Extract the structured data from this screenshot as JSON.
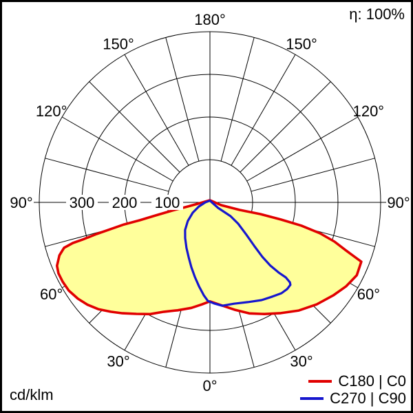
{
  "header": {
    "efficiency": "η: 100%"
  },
  "footer": {
    "units": "cd/klm"
  },
  "chart_data": {
    "type": "line",
    "subtype": "polar-photometric-luminous-intensity",
    "units": "cd/klm",
    "efficiency": "η: 100%",
    "rlim": [
      0,
      400
    ],
    "radial_ticks": [
      100,
      200,
      300,
      400
    ],
    "radial_tick_labels": [
      "100",
      "200",
      "300"
    ],
    "angle_step_deg": 15,
    "angle_tick_labels": [
      "0°",
      "30°",
      "60°",
      "90°",
      "120°",
      "150°",
      "180°"
    ],
    "angle_tick_values": [
      0,
      30,
      60,
      90,
      120,
      150,
      180
    ],
    "grid_color": "#000000",
    "legend_position": "bottom-right",
    "series": [
      {
        "name": "C180 | C0",
        "color": "#e10000",
        "fill": "#ffff9b",
        "points_gamma_value": [
          [
            180,
            5
          ],
          [
            76.0,
            27
          ],
          [
            75.7,
            72
          ],
          [
            76.9,
            121
          ],
          [
            76.4,
            171
          ],
          [
            75.7,
            221
          ],
          [
            74.3,
            268
          ],
          [
            72.5,
            306
          ],
          [
            70.5,
            339
          ],
          [
            68.6,
            381
          ],
          [
            63.6,
            384
          ],
          [
            58.4,
            375
          ],
          [
            53.0,
            362
          ],
          [
            46.3,
            346
          ],
          [
            39.4,
            328
          ],
          [
            32.6,
            308
          ],
          [
            26.0,
            291
          ],
          [
            19.5,
            276
          ],
          [
            13.3,
            259
          ],
          [
            6.5,
            243
          ],
          [
            0,
            232
          ],
          [
            -4.6,
            240
          ],
          [
            -10.0,
            251
          ],
          [
            -16.7,
            264
          ],
          [
            -22.8,
            278
          ],
          [
            -28.2,
            297
          ],
          [
            -33.4,
            313
          ],
          [
            -38.3,
            331
          ],
          [
            -42.2,
            346
          ],
          [
            -46.3,
            362
          ],
          [
            -50.1,
            374
          ],
          [
            -53.9,
            383
          ],
          [
            -58.0,
            390
          ],
          [
            -61.7,
            392
          ],
          [
            -64.9,
            392
          ],
          [
            -67.5,
            388
          ],
          [
            -70.6,
            374
          ],
          [
            -72.7,
            358
          ],
          [
            -73.5,
            335
          ],
          [
            -73.7,
            311
          ],
          [
            -74.4,
            276
          ],
          [
            -74.9,
            242
          ],
          [
            -75.6,
            208
          ],
          [
            -75.7,
            170
          ],
          [
            -76.5,
            131
          ],
          [
            -77.7,
            91
          ],
          [
            -79.4,
            52
          ],
          [
            -85.9,
            23
          ],
          [
            -180,
            5
          ]
        ]
      },
      {
        "name": "C270 | C90",
        "color": "#1616ce",
        "fill": null,
        "points_gamma_value": [
          [
            180,
            4
          ],
          [
            56.0,
            23
          ],
          [
            56.3,
            58
          ],
          [
            52.9,
            83
          ],
          [
            48.4,
            114
          ],
          [
            45.4,
            147
          ],
          [
            43.9,
            177
          ],
          [
            43.7,
            205
          ],
          [
            44.4,
            230
          ],
          [
            45.3,
            250
          ],
          [
            45.0,
            265
          ],
          [
            44.3,
            270
          ],
          [
            41.6,
            272
          ],
          [
            38.2,
            271
          ],
          [
            33.6,
            265
          ],
          [
            27.8,
            259
          ],
          [
            20.8,
            250
          ],
          [
            13.4,
            244
          ],
          [
            6.8,
            244
          ],
          [
            2.3,
            237
          ],
          [
            -1.2,
            231
          ],
          [
            -3.8,
            218
          ],
          [
            -7.5,
            198
          ],
          [
            -11.5,
            178
          ],
          [
            -16.0,
            158
          ],
          [
            -21.2,
            138
          ],
          [
            -27.3,
            120
          ],
          [
            -34.7,
            102
          ],
          [
            -42.0,
            87
          ],
          [
            -49.8,
            68
          ],
          [
            -59.0,
            47
          ],
          [
            -69.4,
            28
          ],
          [
            -90.0,
            11
          ],
          [
            -180,
            4
          ]
        ]
      }
    ]
  }
}
